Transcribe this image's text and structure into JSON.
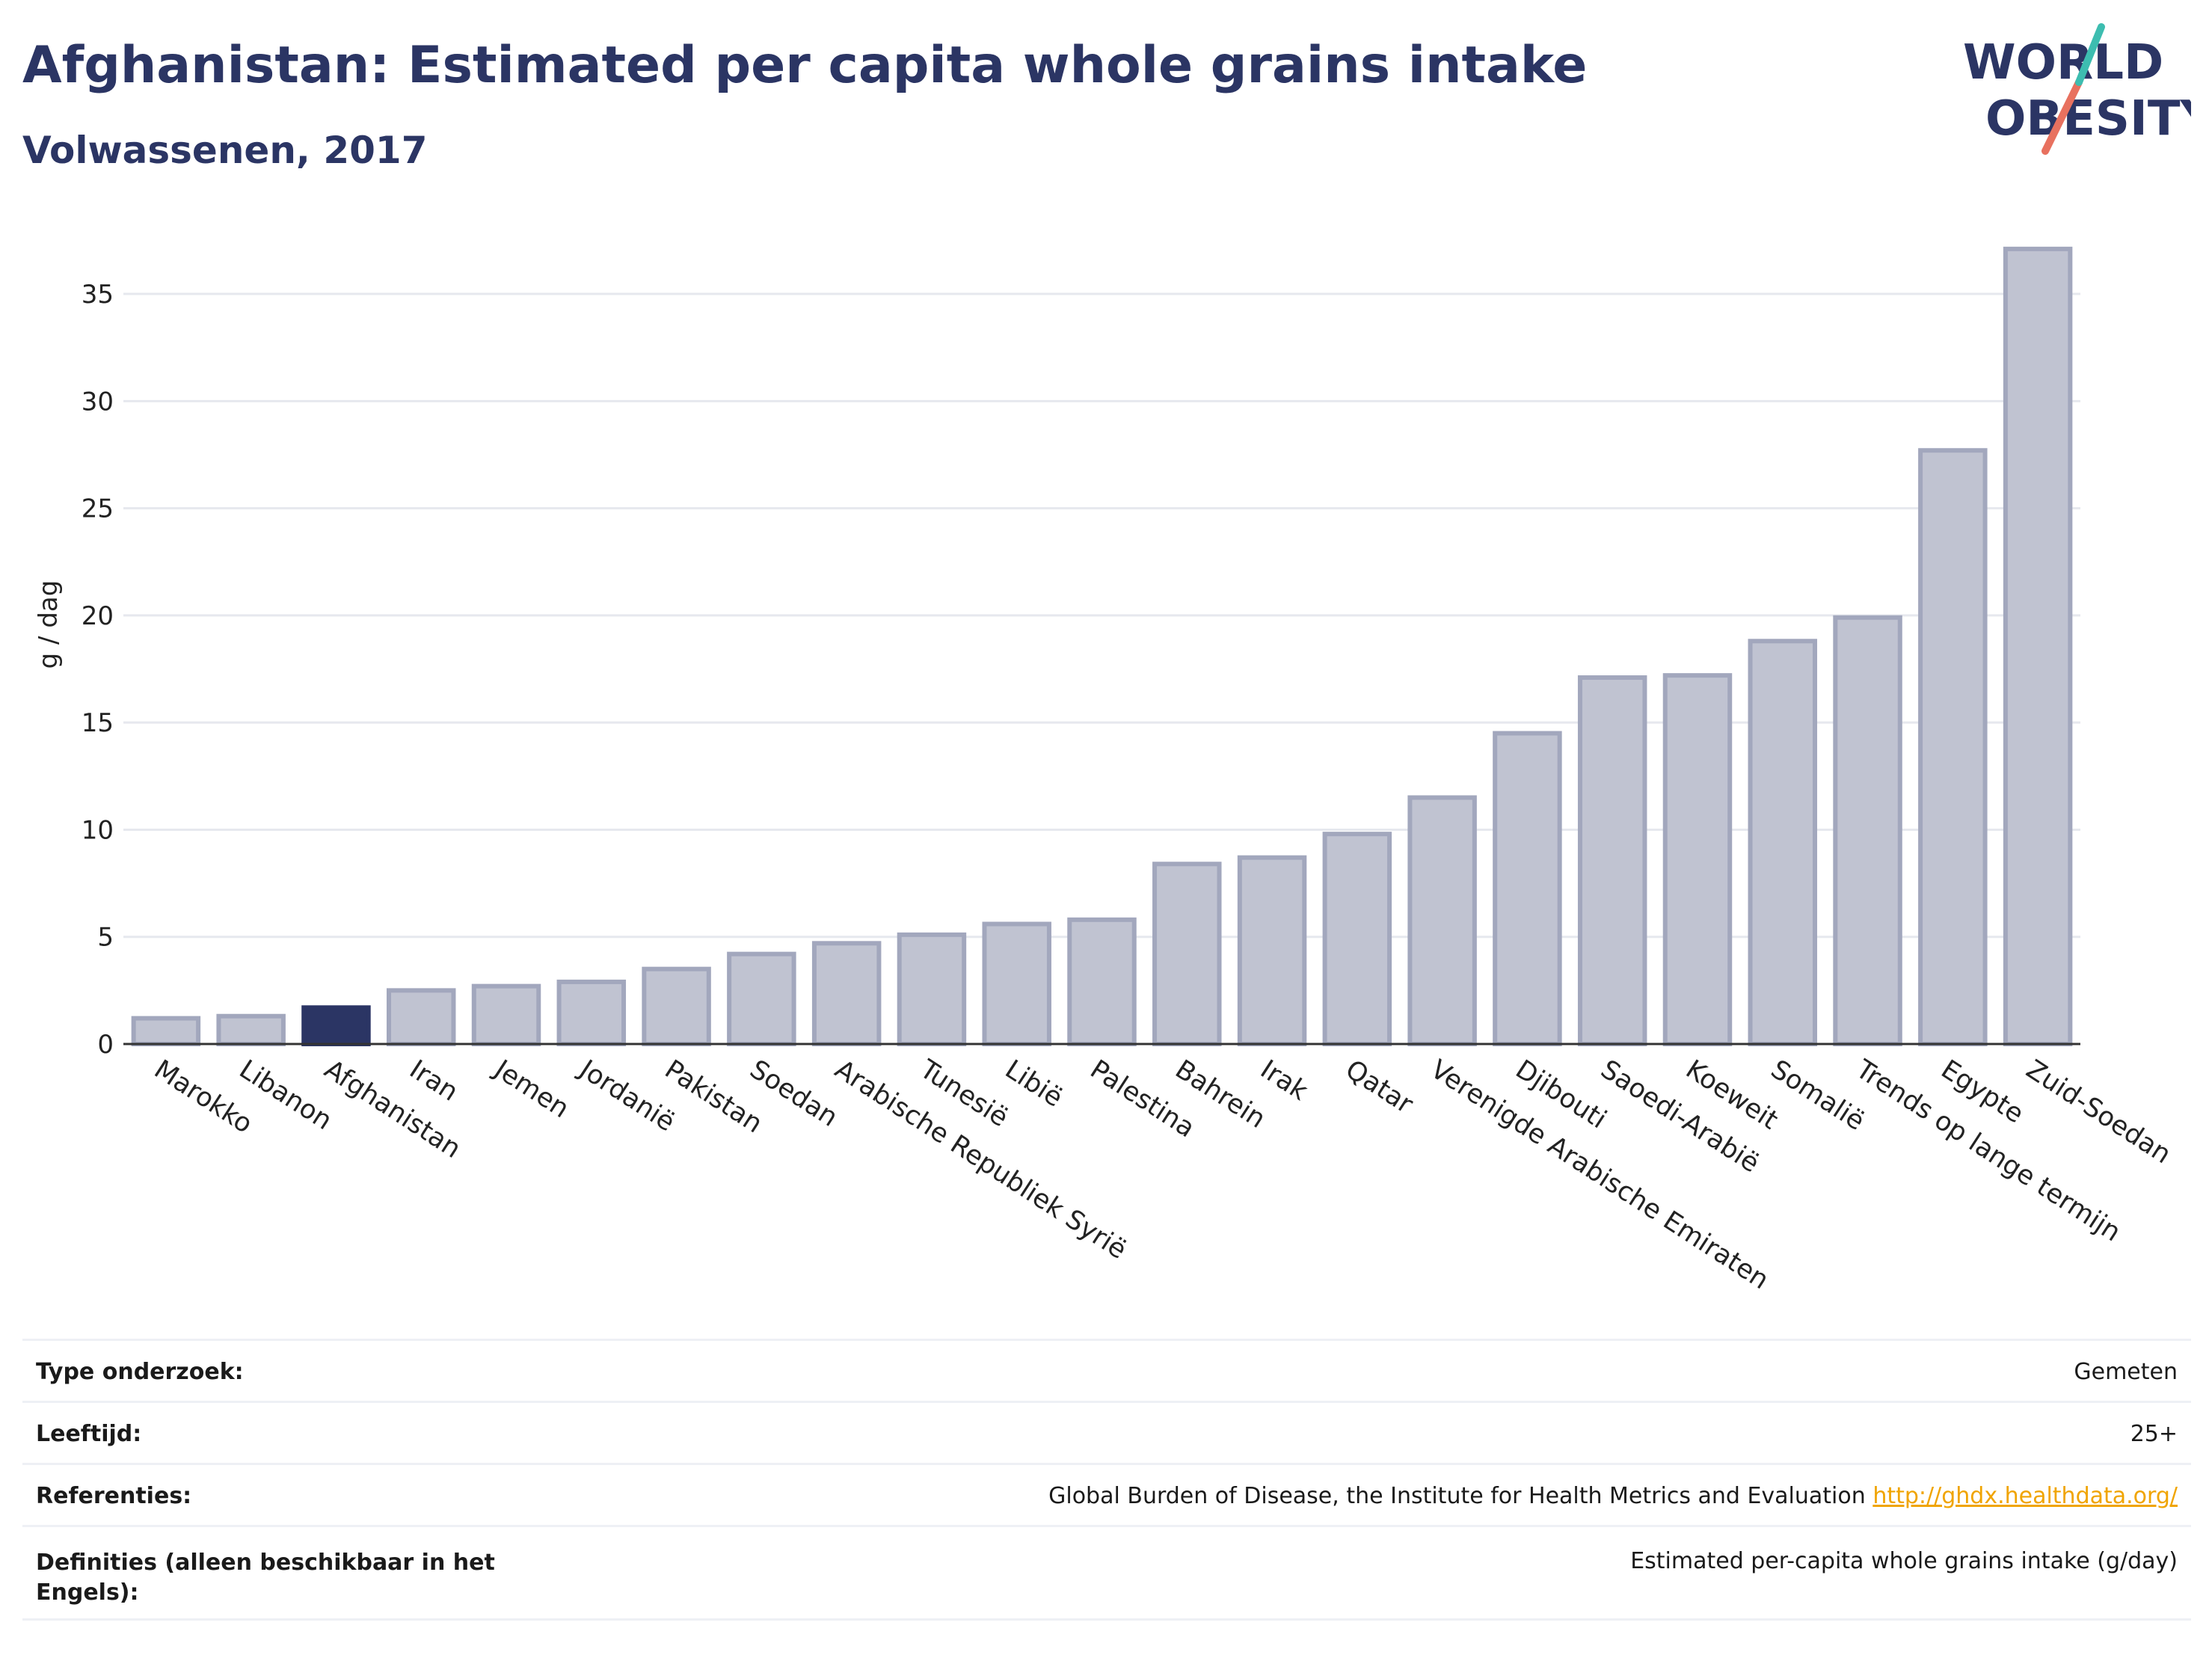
{
  "header": {
    "title": "Afghanistan: Estimated per capita whole grains intake",
    "subtitle": "Volwassenen, 2017"
  },
  "logo": {
    "line1": "WORLD",
    "line2": "OBESITY"
  },
  "colors": {
    "bar": "#c0c3d1",
    "bar_border": "#a2a7bd",
    "highlight": "#2b3564",
    "grid": "#e6e8ee",
    "axis": "#333333",
    "link": "#f0a400"
  },
  "chart_data": {
    "type": "bar",
    "ylabel": "g / dag",
    "ylim": [
      0,
      37.2
    ],
    "yticks": [
      0,
      5,
      10,
      15,
      20,
      25,
      30,
      35
    ],
    "grid": true,
    "highlight": "Afghanistan",
    "categories": [
      "Marokko",
      "Libanon",
      "Afghanistan",
      "Iran",
      "Jemen",
      "Jordanië",
      "Pakistan",
      "Soedan",
      "Arabische Republiek Syrië",
      "Tunesië",
      "Libië",
      "Palestina",
      "Bahrein",
      "Irak",
      "Qatar",
      "Verenigde Arabische Emiraten",
      "Djibouti",
      "Saoedi-Arabië",
      "Koeweit",
      "Somalië",
      "Trends op lange termijn",
      "Egypte",
      "Zuid-Soedan"
    ],
    "values": [
      1.2,
      1.3,
      1.7,
      2.5,
      2.7,
      2.9,
      3.5,
      4.2,
      4.7,
      5.1,
      5.6,
      5.8,
      8.4,
      8.7,
      9.8,
      11.5,
      14.5,
      17.1,
      17.2,
      18.8,
      19.9,
      27.7,
      37.1
    ]
  },
  "info": {
    "rows": [
      {
        "label": "Type onderzoek:",
        "value": "Gemeten"
      },
      {
        "label": "Leeftijd:",
        "value": "25+"
      },
      {
        "label": "Referenties:",
        "value": "Global Burden of Disease, the Institute for Health Metrics and Evaluation",
        "link": "http://ghdx.healthdata.org/"
      },
      {
        "label": "Definities (alleen beschikbaar in het Engels):",
        "value": "Estimated per-capita whole grains intake (g/day)"
      }
    ]
  }
}
